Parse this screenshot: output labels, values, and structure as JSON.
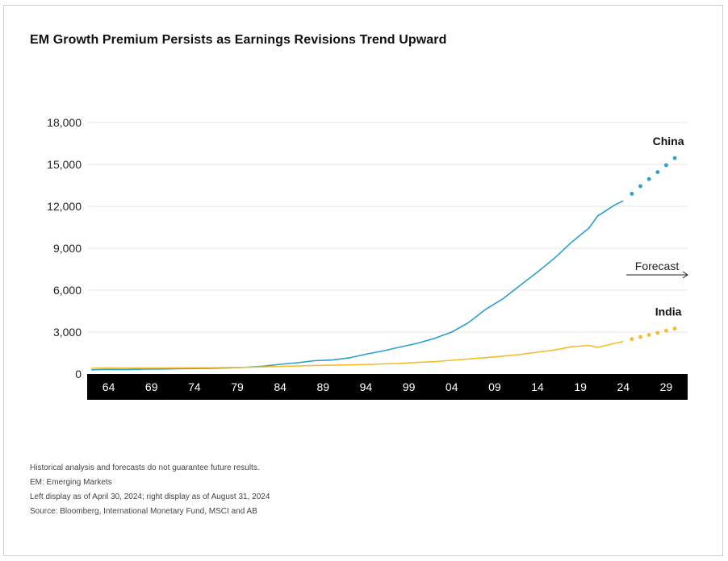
{
  "title": "EM Growth Premium Persists as Earnings Revisions Trend Upward",
  "footnotes": [
    "Historical analysis and forecasts do not guarantee future results.",
    "EM: Emerging Markets",
    "Left display as of April 30, 2024; right display as of August 31, 2024",
    "Source: Bloomberg, International Monetary Fund, MSCI and AB"
  ],
  "colors": {
    "china": "#2a9fd0",
    "india": "#f5bd2a",
    "axis_band": "#000000",
    "grid": "#e3e3e3"
  },
  "chart_data": {
    "type": "line",
    "title": "EM Growth Premium Persists as Earnings Revisions Trend Upward",
    "xlabel": "",
    "ylabel": "",
    "ylim": [
      0,
      18000
    ],
    "yticks": [
      0,
      3000,
      6000,
      9000,
      12000,
      15000,
      18000
    ],
    "ytick_labels": [
      "0",
      "3,000",
      "6,000",
      "9,000",
      "12,000",
      "15,000",
      "18,000"
    ],
    "xlim": [
      1961.5,
      2031.5
    ],
    "xticks": [
      1964,
      1969,
      1974,
      1979,
      1984,
      1989,
      1994,
      1999,
      2004,
      2009,
      2014,
      2019,
      2024,
      2029
    ],
    "xtick_labels": [
      "64",
      "69",
      "74",
      "79",
      "84",
      "89",
      "94",
      "99",
      "04",
      "09",
      "14",
      "19",
      "24",
      "29"
    ],
    "grid": true,
    "annotation": "Forecast",
    "series": [
      {
        "name": "China",
        "x": [
          1962,
          1964,
          1966,
          1968,
          1970,
          1972,
          1974,
          1976,
          1978,
          1980,
          1982,
          1984,
          1986,
          1988,
          1990,
          1992,
          1994,
          1996,
          1998,
          2000,
          2002,
          2004,
          2006,
          2008,
          2010,
          2012,
          2014,
          2016,
          2018,
          2020,
          2021,
          2022,
          2023,
          2024
        ],
        "values": [
          300,
          330,
          310,
          350,
          360,
          380,
          390,
          410,
          440,
          480,
          560,
          690,
          810,
          950,
          1000,
          1150,
          1420,
          1650,
          1930,
          2200,
          2550,
          3000,
          3700,
          4650,
          5400,
          6350,
          7300,
          8300,
          9450,
          10450,
          11300,
          11700,
          12100,
          12400
        ],
        "forecast_x": [
          2025,
          2026,
          2027,
          2028,
          2029,
          2030
        ],
        "forecast_values": [
          12900,
          13450,
          13950,
          14450,
          14950,
          15450
        ]
      },
      {
        "name": "India",
        "x": [
          1962,
          1964,
          1966,
          1968,
          1970,
          1972,
          1974,
          1976,
          1978,
          1980,
          1982,
          1984,
          1986,
          1988,
          1990,
          1992,
          1994,
          1996,
          1998,
          2000,
          2002,
          2004,
          2006,
          2008,
          2010,
          2012,
          2014,
          2016,
          2018,
          2020,
          2021,
          2022,
          2023,
          2024
        ],
        "values": [
          420,
          430,
          420,
          425,
          435,
          440,
          445,
          450,
          465,
          480,
          510,
          540,
          570,
          610,
          630,
          650,
          680,
          720,
          760,
          830,
          880,
          980,
          1080,
          1170,
          1280,
          1400,
          1560,
          1720,
          1950,
          2050,
          1900,
          2050,
          2200,
          2320
        ],
        "forecast_x": [
          2025,
          2026,
          2027,
          2028,
          2029,
          2030
        ],
        "forecast_values": [
          2500,
          2650,
          2800,
          2950,
          3100,
          3250
        ]
      }
    ]
  }
}
